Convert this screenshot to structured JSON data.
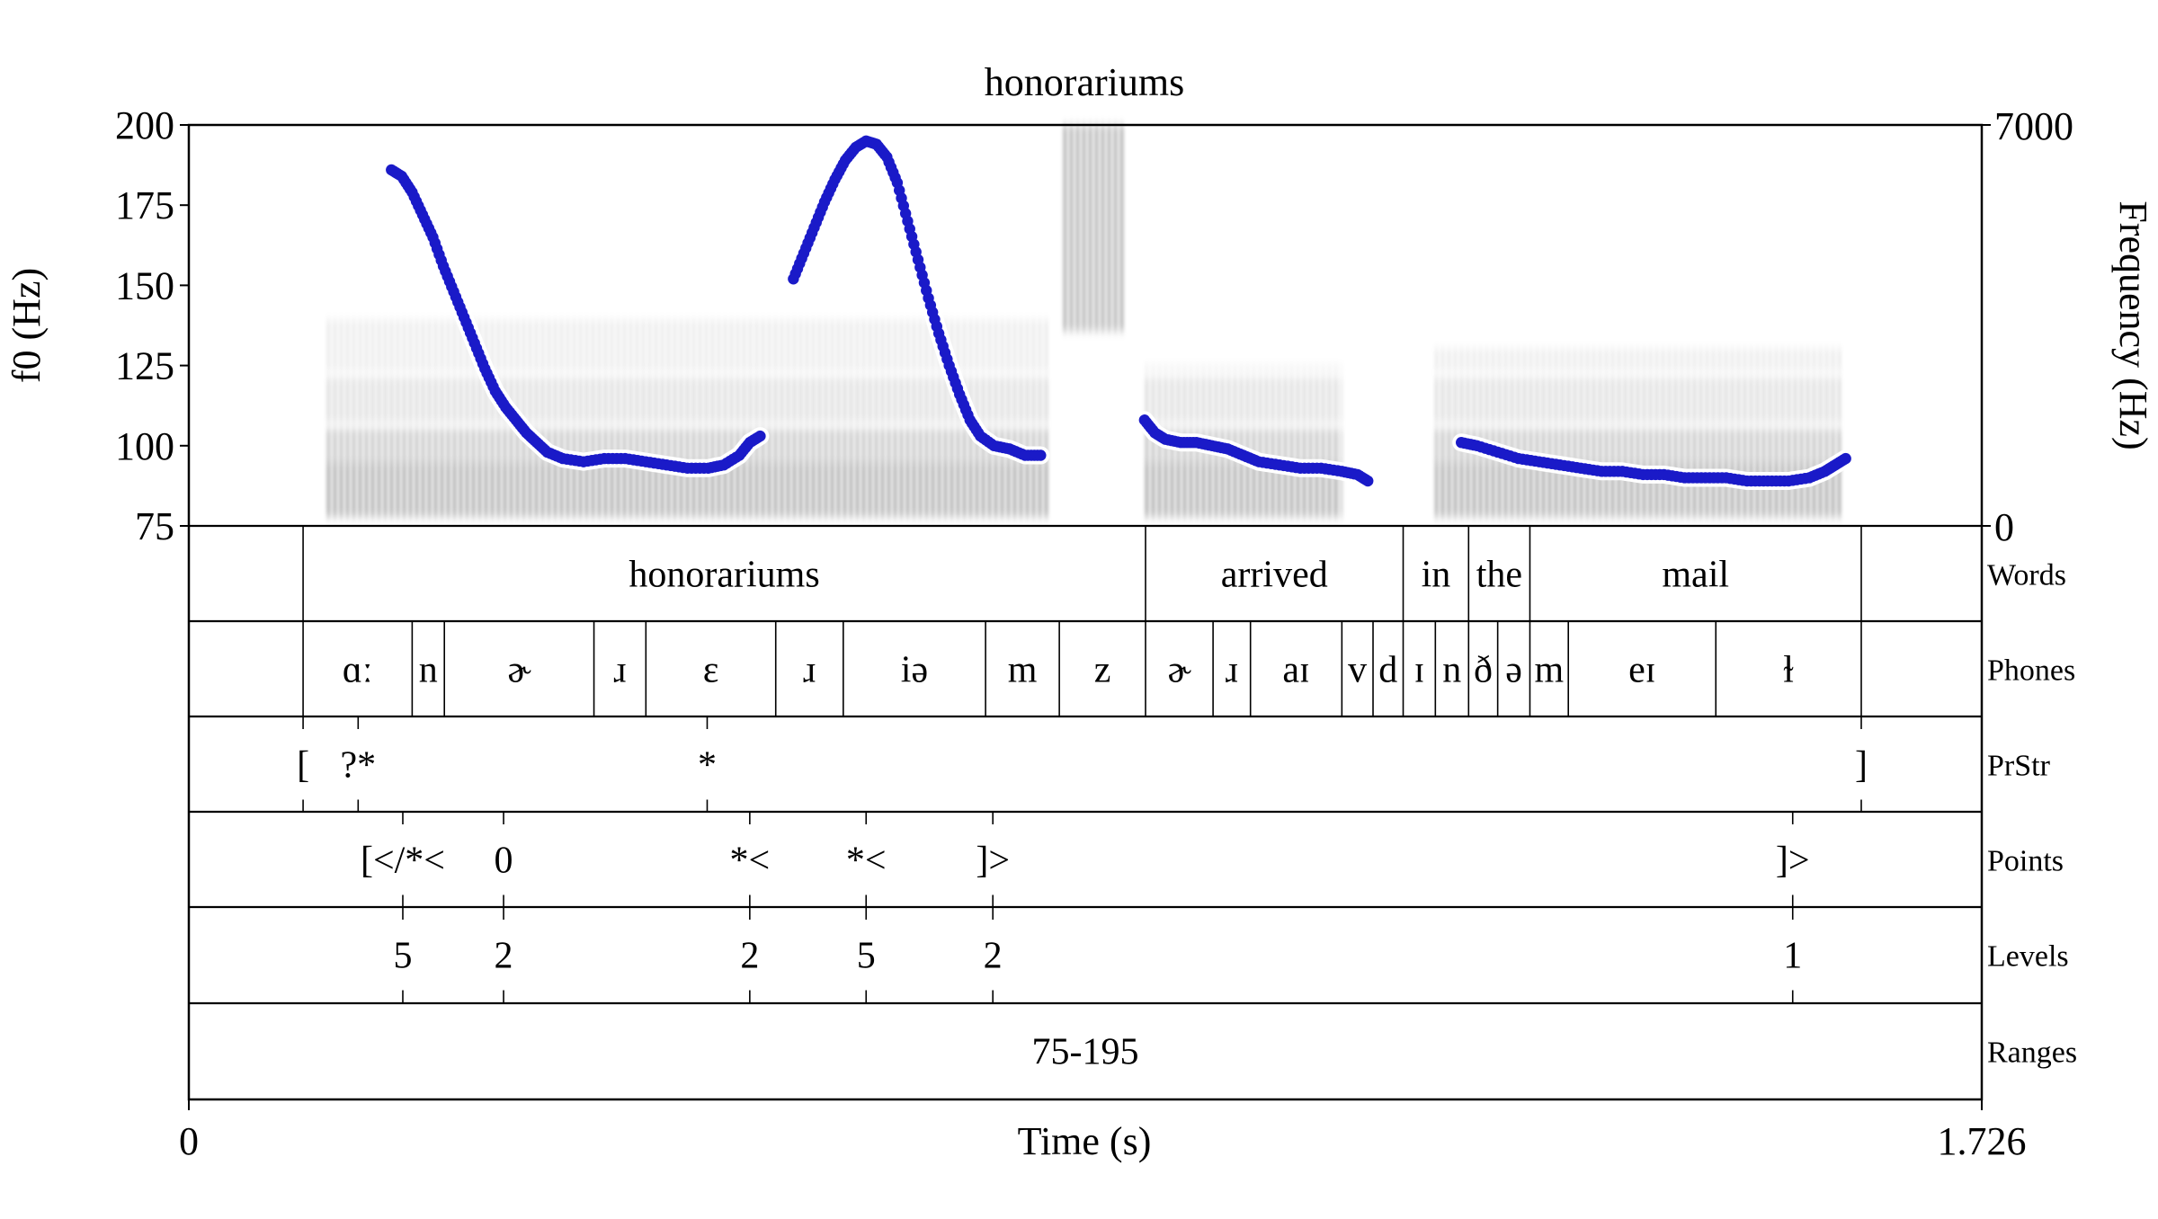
{
  "chart_data": {
    "type": "line",
    "title": "honorariums",
    "xlabel": "Time (s)",
    "ylabel_left": "f0 (Hz)",
    "ylabel_right": "Frequency (Hz)",
    "xlim": [
      0,
      1.726
    ],
    "x_tick_labels": [
      "0",
      "1.726"
    ],
    "ylim_f0": [
      75,
      200
    ],
    "y_ticks_f0": [
      75,
      100,
      125,
      150,
      175,
      200
    ],
    "ylim_freq": [
      0,
      7000
    ],
    "y_tick_labels_freq": [
      "0",
      "7000"
    ],
    "series": [
      {
        "color": "#1a1ac8",
        "segments": [
          [
            [
              0.195,
              186
            ],
            [
              0.205,
              184
            ],
            [
              0.215,
              179
            ],
            [
              0.225,
              172
            ],
            [
              0.235,
              165
            ],
            [
              0.245,
              156
            ],
            [
              0.255,
              148
            ],
            [
              0.265,
              140
            ],
            [
              0.275,
              132
            ],
            [
              0.285,
              124
            ],
            [
              0.295,
              117
            ],
            [
              0.305,
              112
            ],
            [
              0.315,
              108
            ],
            [
              0.325,
              104
            ],
            [
              0.335,
              101
            ],
            [
              0.345,
              98
            ],
            [
              0.36,
              96
            ],
            [
              0.38,
              95
            ],
            [
              0.4,
              96
            ],
            [
              0.42,
              96
            ],
            [
              0.44,
              95
            ],
            [
              0.46,
              94
            ],
            [
              0.48,
              93
            ],
            [
              0.5,
              93
            ],
            [
              0.515,
              94
            ],
            [
              0.53,
              97
            ],
            [
              0.54,
              101
            ],
            [
              0.55,
              103
            ]
          ],
          [
            [
              0.582,
              152
            ],
            [
              0.592,
              160
            ],
            [
              0.602,
              168
            ],
            [
              0.612,
              176
            ],
            [
              0.622,
              183
            ],
            [
              0.632,
              189
            ],
            [
              0.642,
              193
            ],
            [
              0.652,
              195
            ],
            [
              0.662,
              194
            ],
            [
              0.672,
              190
            ],
            [
              0.682,
              182
            ],
            [
              0.692,
              170
            ],
            [
              0.702,
              158
            ],
            [
              0.712,
              146
            ],
            [
              0.722,
              135
            ],
            [
              0.732,
              125
            ],
            [
              0.742,
              116
            ],
            [
              0.752,
              108
            ],
            [
              0.762,
              103
            ],
            [
              0.775,
              100
            ],
            [
              0.79,
              99
            ],
            [
              0.805,
              97
            ],
            [
              0.82,
              97
            ]
          ],
          [
            [
              0.92,
              108
            ],
            [
              0.93,
              104
            ],
            [
              0.94,
              102
            ],
            [
              0.955,
              101
            ],
            [
              0.97,
              101
            ],
            [
              0.985,
              100
            ],
            [
              1.0,
              99
            ],
            [
              1.015,
              97
            ],
            [
              1.03,
              95
            ],
            [
              1.05,
              94
            ],
            [
              1.07,
              93
            ],
            [
              1.09,
              93
            ],
            [
              1.11,
              92
            ],
            [
              1.125,
              91
            ],
            [
              1.135,
              89
            ]
          ],
          [
            [
              1.225,
              101
            ],
            [
              1.24,
              100
            ],
            [
              1.26,
              98
            ],
            [
              1.28,
              96
            ],
            [
              1.3,
              95
            ],
            [
              1.32,
              94
            ],
            [
              1.34,
              93
            ],
            [
              1.36,
              92
            ],
            [
              1.38,
              92
            ],
            [
              1.4,
              91
            ],
            [
              1.42,
              91
            ],
            [
              1.44,
              90
            ],
            [
              1.46,
              90
            ],
            [
              1.48,
              90
            ],
            [
              1.5,
              89
            ],
            [
              1.52,
              89
            ],
            [
              1.54,
              89
            ],
            [
              1.56,
              90
            ],
            [
              1.575,
              92
            ],
            [
              1.585,
              94
            ],
            [
              1.595,
              96
            ]
          ]
        ]
      }
    ],
    "spectrogram_regions": [
      {
        "t0": 0.13,
        "t1": 0.83,
        "f_max": 3600
      },
      {
        "t0": 0.84,
        "t1": 0.9,
        "f_max": 7000
      },
      {
        "t0": 0.92,
        "t1": 1.11,
        "f_max": 2800
      },
      {
        "t0": 1.2,
        "t1": 1.59,
        "f_max": 3100
      }
    ]
  },
  "tiers": [
    {
      "name": "Words",
      "type": "interval",
      "boundaries": [
        0.11,
        0.921,
        1.169,
        1.232,
        1.291,
        1.61
      ],
      "intervals": [
        {
          "t0": 0.11,
          "t1": 0.921,
          "label": "honorariums"
        },
        {
          "t0": 0.921,
          "t1": 1.169,
          "label": "arrived"
        },
        {
          "t0": 1.169,
          "t1": 1.232,
          "label": "in"
        },
        {
          "t0": 1.232,
          "t1": 1.291,
          "label": "the"
        },
        {
          "t0": 1.291,
          "t1": 1.61,
          "label": "mail"
        }
      ]
    },
    {
      "name": "Phones",
      "type": "interval",
      "boundaries": [
        0.11,
        0.215,
        0.246,
        0.39,
        0.44,
        0.565,
        0.63,
        0.767,
        0.838,
        0.921,
        0.986,
        1.022,
        1.11,
        1.14,
        1.169,
        1.2,
        1.232,
        1.26,
        1.291,
        1.328,
        1.47,
        1.61
      ],
      "intervals": [
        {
          "t0": 0.11,
          "t1": 0.215,
          "label": "ɑː"
        },
        {
          "t0": 0.215,
          "t1": 0.246,
          "label": "n"
        },
        {
          "t0": 0.246,
          "t1": 0.39,
          "label": "ɚ"
        },
        {
          "t0": 0.39,
          "t1": 0.44,
          "label": "ɹ"
        },
        {
          "t0": 0.44,
          "t1": 0.565,
          "label": "ɛ"
        },
        {
          "t0": 0.565,
          "t1": 0.63,
          "label": "ɹ"
        },
        {
          "t0": 0.63,
          "t1": 0.767,
          "label": "iə"
        },
        {
          "t0": 0.767,
          "t1": 0.838,
          "label": "m"
        },
        {
          "t0": 0.838,
          "t1": 0.921,
          "label": "z"
        },
        {
          "t0": 0.921,
          "t1": 0.986,
          "label": "ɚ"
        },
        {
          "t0": 0.986,
          "t1": 1.022,
          "label": "ɹ"
        },
        {
          "t0": 1.022,
          "t1": 1.11,
          "label": "aɪ"
        },
        {
          "t0": 1.11,
          "t1": 1.14,
          "label": "v"
        },
        {
          "t0": 1.14,
          "t1": 1.169,
          "label": "d"
        },
        {
          "t0": 1.169,
          "t1": 1.2,
          "label": "ɪ"
        },
        {
          "t0": 1.2,
          "t1": 1.232,
          "label": "n"
        },
        {
          "t0": 1.232,
          "t1": 1.26,
          "label": "ð"
        },
        {
          "t0": 1.26,
          "t1": 1.291,
          "label": "ə"
        },
        {
          "t0": 1.291,
          "t1": 1.328,
          "label": "m"
        },
        {
          "t0": 1.328,
          "t1": 1.47,
          "label": "eɪ"
        },
        {
          "t0": 1.47,
          "t1": 1.61,
          "label": "ɫ"
        }
      ]
    },
    {
      "name": "PrStr",
      "type": "point",
      "points": [
        {
          "t": 0.11,
          "label": "["
        },
        {
          "t": 0.163,
          "label": "?*"
        },
        {
          "t": 0.499,
          "label": "*"
        },
        {
          "t": 1.61,
          "label": "]"
        }
      ]
    },
    {
      "name": "Points",
      "type": "point",
      "points": [
        {
          "t": 0.206,
          "label": "[</*<"
        },
        {
          "t": 0.303,
          "label": "0"
        },
        {
          "t": 0.54,
          "label": "*<"
        },
        {
          "t": 0.652,
          "label": "*<"
        },
        {
          "t": 0.774,
          "label": "]>"
        },
        {
          "t": 1.544,
          "label": "]>"
        }
      ]
    },
    {
      "name": "Levels",
      "type": "point",
      "points": [
        {
          "t": 0.206,
          "label": "5"
        },
        {
          "t": 0.303,
          "label": "2"
        },
        {
          "t": 0.54,
          "label": "2"
        },
        {
          "t": 0.652,
          "label": "5"
        },
        {
          "t": 0.774,
          "label": "2"
        },
        {
          "t": 1.544,
          "label": "1"
        }
      ]
    },
    {
      "name": "Ranges",
      "type": "interval",
      "boundaries": [],
      "intervals": [
        {
          "t0": 0,
          "t1": 1.726,
          "label": "75-195"
        }
      ]
    }
  ]
}
